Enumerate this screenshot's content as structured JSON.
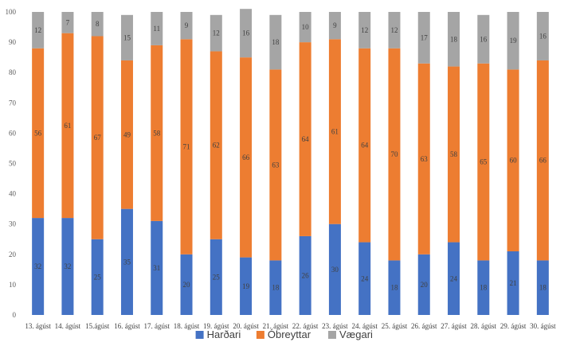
{
  "chart_data": {
    "type": "bar",
    "stacked": true,
    "categories": [
      "13. ágúst",
      "14. ágúst",
      "15.ágúst",
      "16. ágúst",
      "17. ágúst",
      "18. ágúst",
      "19. ágúst",
      "20. ágúst",
      "21. ágúst",
      "22. ágúst",
      "23. ágúst",
      "24. ágúst",
      "25. ágúst",
      "26. ágúst",
      "27. ágúst",
      "28. ágúst",
      "29. ágúst",
      "30. ágúst"
    ],
    "series": [
      {
        "name": "Harðari",
        "color": "#4472C4",
        "values": [
          32,
          32,
          25,
          35,
          31,
          20,
          25,
          19,
          18,
          26,
          30,
          24,
          18,
          20,
          24,
          18,
          21,
          18
        ]
      },
      {
        "name": "Óbreyttar",
        "color": "#ED7D31",
        "values": [
          56,
          61,
          67,
          49,
          58,
          71,
          62,
          66,
          63,
          64,
          61,
          64,
          70,
          63,
          58,
          65,
          60,
          66
        ]
      },
      {
        "name": "Vægari",
        "color": "#A5A5A5",
        "values": [
          12,
          7,
          8,
          15,
          11,
          9,
          12,
          16,
          18,
          10,
          9,
          12,
          12,
          17,
          18,
          16,
          19,
          16
        ]
      }
    ],
    "ylim": [
      0,
      100
    ],
    "yticks": [
      0,
      10,
      20,
      30,
      40,
      50,
      60,
      70,
      80,
      90,
      100
    ],
    "grid": false,
    "legend": "bottom"
  }
}
